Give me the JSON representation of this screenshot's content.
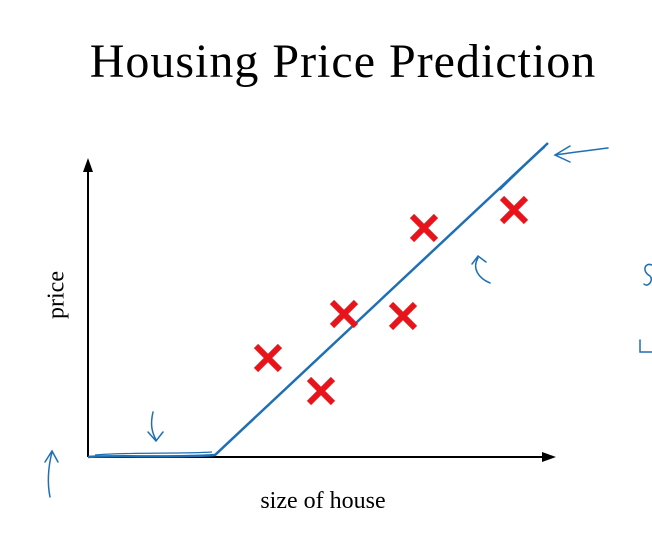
{
  "header": {
    "title": "Housing Price Prediction"
  },
  "axes": {
    "y_label": "price",
    "x_label": "size of house"
  }
}
